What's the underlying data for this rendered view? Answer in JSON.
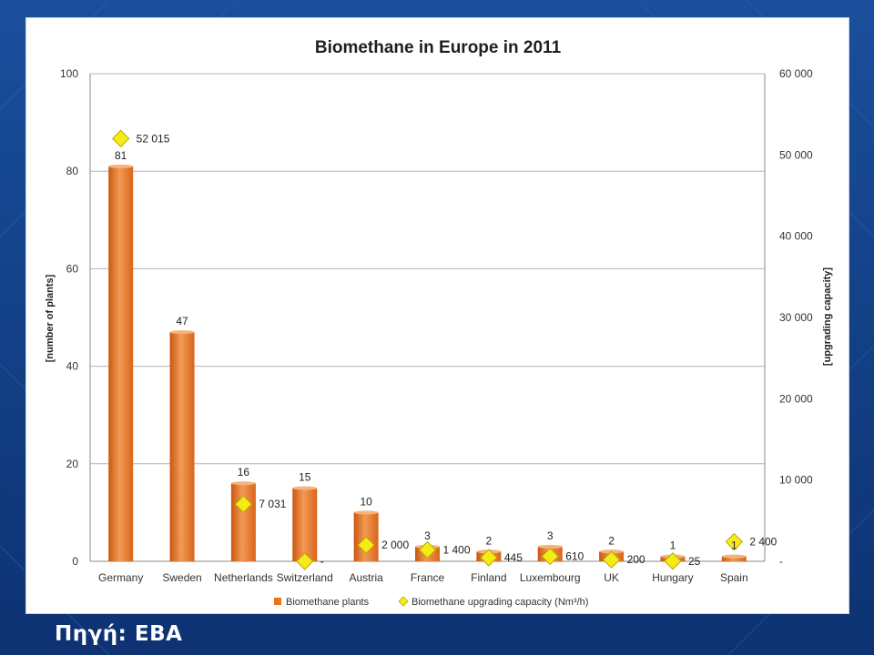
{
  "slide": {
    "source_text": "Πηγή: EBA"
  },
  "colors": {
    "background": "#154690",
    "bar": "#e8731f",
    "bar_light": "#f4a766",
    "marker": "#f5ec17",
    "marker_edge": "#b7a800"
  },
  "chart_data": {
    "type": "bar",
    "title": "Biomethane in Europe in 2011",
    "categories": [
      "Germany",
      "Sweden",
      "Netherlands",
      "Switzerland",
      "Austria",
      "France",
      "Finland",
      "Luxembourg",
      "UK",
      "Hungary",
      "Spain"
    ],
    "ylabel_left": "[number of plants]",
    "ylabel_right": "[upgrading capacity]",
    "ylim_left": [
      0,
      100
    ],
    "ylim_right": [
      0,
      60000
    ],
    "yticks_left": [
      "0",
      "20",
      "40",
      "60",
      "80",
      "100"
    ],
    "yticks_right": [
      "-",
      "10 000",
      "20 000",
      "30 000",
      "40 000",
      "50 000",
      "60 000"
    ],
    "grid": true,
    "legend_position": "bottom",
    "series": [
      {
        "name": "Biomethane plants",
        "kind": "bar",
        "axis": "left",
        "values": [
          81,
          47,
          16,
          15,
          10,
          3,
          2,
          3,
          2,
          1,
          1
        ],
        "labels": [
          "81",
          "47",
          "16",
          "15",
          "10",
          "3",
          "2",
          "3",
          "2",
          "1",
          "1"
        ]
      },
      {
        "name": "Biomethane upgrading capacity (Nm³/h)",
        "kind": "marker",
        "axis": "right",
        "values": [
          52015,
          null,
          7031,
          0,
          2000,
          1400,
          445,
          610,
          200,
          25,
          2400
        ],
        "labels": [
          "52 015",
          "",
          "7 031",
          "-",
          "2 000",
          "1 400",
          "445",
          "610",
          "200",
          "25",
          "2 400"
        ]
      }
    ]
  }
}
